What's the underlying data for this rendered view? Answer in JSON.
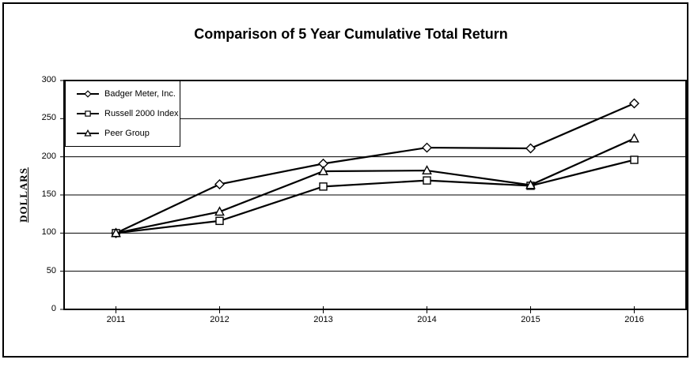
{
  "title": "Comparison of 5 Year Cumulative Total Return",
  "chart_data": {
    "type": "line",
    "title": "Comparison of 5 Year Cumulative Total Return",
    "x": [
      "2011",
      "2012",
      "2013",
      "2014",
      "2015",
      "2016"
    ],
    "series": [
      {
        "name": "Badger Meter, Inc.",
        "marker": "diamond",
        "values": [
          100,
          164,
          191,
          212,
          211,
          270
        ]
      },
      {
        "name": "Russell 2000 Index",
        "marker": "square",
        "values": [
          100,
          116,
          161,
          169,
          162,
          196
        ]
      },
      {
        "name": "Peer Group",
        "marker": "triangle",
        "values": [
          100,
          128,
          181,
          182,
          163,
          224
        ]
      }
    ],
    "xlabel": "",
    "ylabel": "DOLLARS",
    "ylim": [
      0,
      300
    ],
    "ytick_step": 50,
    "yticks": [
      0,
      50,
      100,
      150,
      200,
      250,
      300
    ],
    "grid": true,
    "gridlines": "horizontal",
    "legend_position": "top-left",
    "line_color": "#000000",
    "marker_fill": "#ffffff",
    "background": "#ffffff",
    "frame_color": "#000000"
  }
}
